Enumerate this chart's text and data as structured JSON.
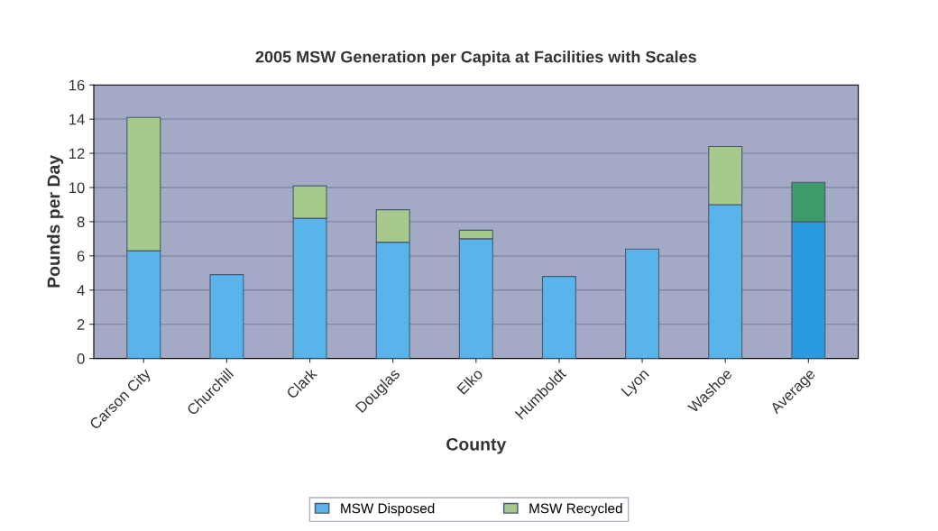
{
  "chart_data": {
    "type": "bar",
    "stacked": true,
    "title": "2005 MSW Generation per Capita at Facilities with Scales",
    "xlabel": "County",
    "ylabel": "Pounds per Day",
    "categories": [
      "Carson City",
      "Churchill",
      "Clark",
      "Douglas",
      "Elko",
      "Humboldt",
      "Lyon",
      "Washoe",
      "Average"
    ],
    "series": [
      {
        "name": "MSW Disposed",
        "color": "#5ab4ec",
        "colors": [
          "#5ab4ec",
          "#5ab4ec",
          "#5ab4ec",
          "#5ab4ec",
          "#5ab4ec",
          "#5ab4ec",
          "#5ab4ec",
          "#5ab4ec",
          "#2a9be0"
        ],
        "values": [
          6.3,
          4.9,
          8.2,
          6.8,
          7.0,
          4.8,
          6.4,
          9.0,
          8.0
        ]
      },
      {
        "name": "MSW Recycled",
        "color": "#a6c98c",
        "colors": [
          "#a6c98c",
          "#a6c98c",
          "#a6c98c",
          "#a6c98c",
          "#a6c98c",
          "#a6c98c",
          "#a6c98c",
          "#a6c98c",
          "#3f9a6a"
        ],
        "values": [
          7.8,
          null,
          1.9,
          1.9,
          0.5,
          null,
          null,
          3.4,
          2.3
        ]
      }
    ],
    "ylim": [
      0,
      16
    ],
    "yticks": [
      0,
      2,
      4,
      6,
      8,
      10,
      12,
      14,
      16
    ],
    "grid": "y",
    "legend": "bottom"
  }
}
